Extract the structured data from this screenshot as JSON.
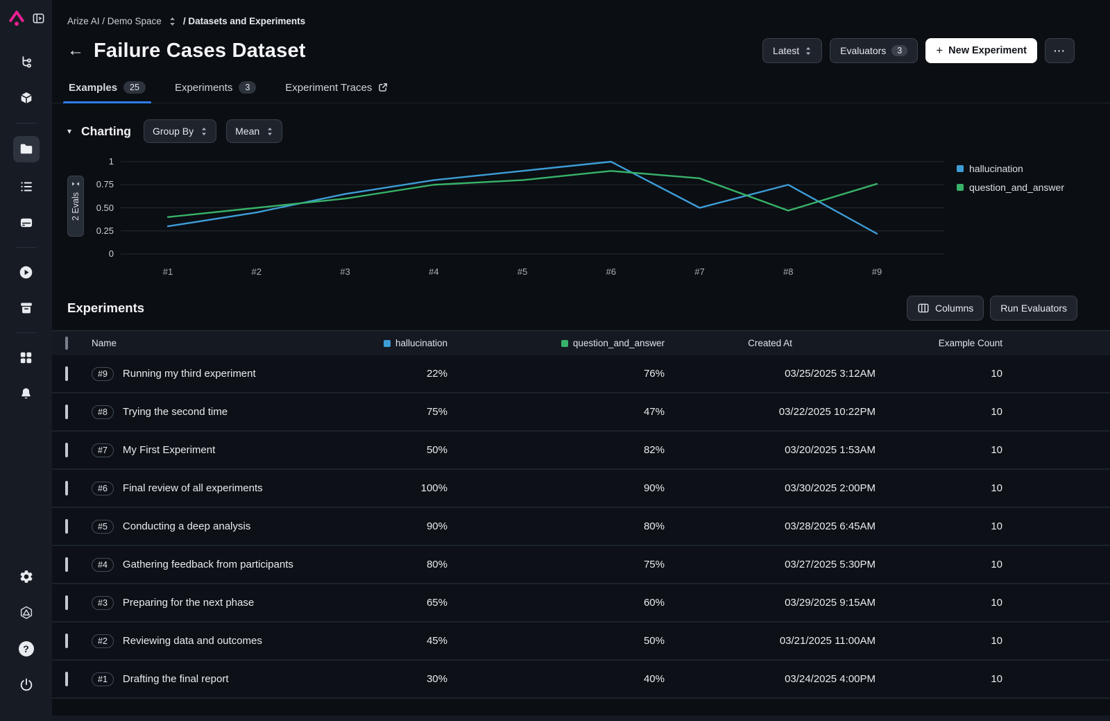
{
  "icons_glyphs": {
    "back_arrow": "←",
    "collapse_caret": "▾",
    "ellipsis": "···",
    "plus": "+"
  },
  "sidebar": {
    "items": [
      "arize-logo",
      "panel-collapse",
      "model-tree",
      "cube",
      "folder",
      "list",
      "drive",
      "play-circle",
      "archive-box",
      "apps-grid",
      "bell",
      "gear",
      "copilot-hexagon",
      "help",
      "power"
    ]
  },
  "breadcrumb": {
    "space": "Arize AI / Demo Space",
    "section": "/ Datasets and Experiments"
  },
  "header": {
    "title": "Failure Cases Dataset",
    "latest_label": "Latest",
    "evaluators_label": "Evaluators",
    "evaluators_count": "3",
    "new_experiment_label": "New Experiment"
  },
  "tabs": [
    {
      "label": "Examples",
      "badge": "25"
    },
    {
      "label": "Experiments",
      "badge": "3"
    },
    {
      "label": "Experiment Traces"
    }
  ],
  "charting": {
    "title": "Charting",
    "group_by_label": "Group By",
    "aggregation_label": "Mean",
    "evals_tab_label": "2 Evals"
  },
  "chart_data": {
    "type": "line",
    "x": [
      "#1",
      "#2",
      "#3",
      "#4",
      "#5",
      "#6",
      "#7",
      "#8",
      "#9"
    ],
    "series": [
      {
        "name": "hallucination",
        "color": "#3d9dd6",
        "values": [
          0.3,
          0.45,
          0.65,
          0.8,
          0.9,
          1.0,
          0.5,
          0.75,
          0.22
        ]
      },
      {
        "name": "question_and_answer",
        "color": "#38b269",
        "values": [
          0.4,
          0.5,
          0.6,
          0.75,
          0.8,
          0.9,
          0.82,
          0.47,
          0.76
        ]
      }
    ],
    "ylim": [
      0,
      1
    ],
    "yticks": [
      0,
      0.25,
      0.5,
      0.75,
      1
    ],
    "ytick_labels": [
      "0",
      "0.25",
      "0.50",
      "0.75",
      "1"
    ],
    "grid": true,
    "legend_position": "right"
  },
  "experiments": {
    "title": "Experiments",
    "columns_label": "Columns",
    "run_evaluators_label": "Run Evaluators",
    "table": {
      "headers": {
        "name": "Name",
        "hallucination": "hallucination",
        "question_and_answer": "question_and_answer",
        "created_at": "Created At",
        "example_count": "Example Count"
      },
      "rows": [
        {
          "id": "#9",
          "name": "Running my third experiment",
          "hallucination": "22%",
          "question_and_answer": "76%",
          "created_at": "03/25/2025 3:12AM",
          "example_count": "10"
        },
        {
          "id": "#8",
          "name": "Trying the second time",
          "hallucination": "75%",
          "question_and_answer": "47%",
          "created_at": "03/22/2025 10:22PM",
          "example_count": "10"
        },
        {
          "id": "#7",
          "name": "My First Experiment",
          "hallucination": "50%",
          "question_and_answer": "82%",
          "created_at": "03/20/2025 1:53AM",
          "example_count": "10"
        },
        {
          "id": "#6",
          "name": "Final review of all experiments",
          "hallucination": "100%",
          "question_and_answer": "90%",
          "created_at": "03/30/2025 2:00PM",
          "example_count": "10"
        },
        {
          "id": "#5",
          "name": "Conducting a deep analysis",
          "hallucination": "90%",
          "question_and_answer": "80%",
          "created_at": "03/28/2025 6:45AM",
          "example_count": "10"
        },
        {
          "id": "#4",
          "name": "Gathering feedback from participants",
          "hallucination": "80%",
          "question_and_answer": "75%",
          "created_at": "03/27/2025 5:30PM",
          "example_count": "10"
        },
        {
          "id": "#3",
          "name": "Preparing for the next phase",
          "hallucination": "65%",
          "question_and_answer": "60%",
          "created_at": "03/29/2025 9:15AM",
          "example_count": "10"
        },
        {
          "id": "#2",
          "name": "Reviewing data and outcomes",
          "hallucination": "45%",
          "question_and_answer": "50%",
          "created_at": "03/21/2025 11:00AM",
          "example_count": "10"
        },
        {
          "id": "#1",
          "name": "Drafting the final report",
          "hallucination": "30%",
          "question_and_answer": "40%",
          "created_at": "03/24/2025 4:00PM",
          "example_count": "10"
        }
      ]
    }
  }
}
